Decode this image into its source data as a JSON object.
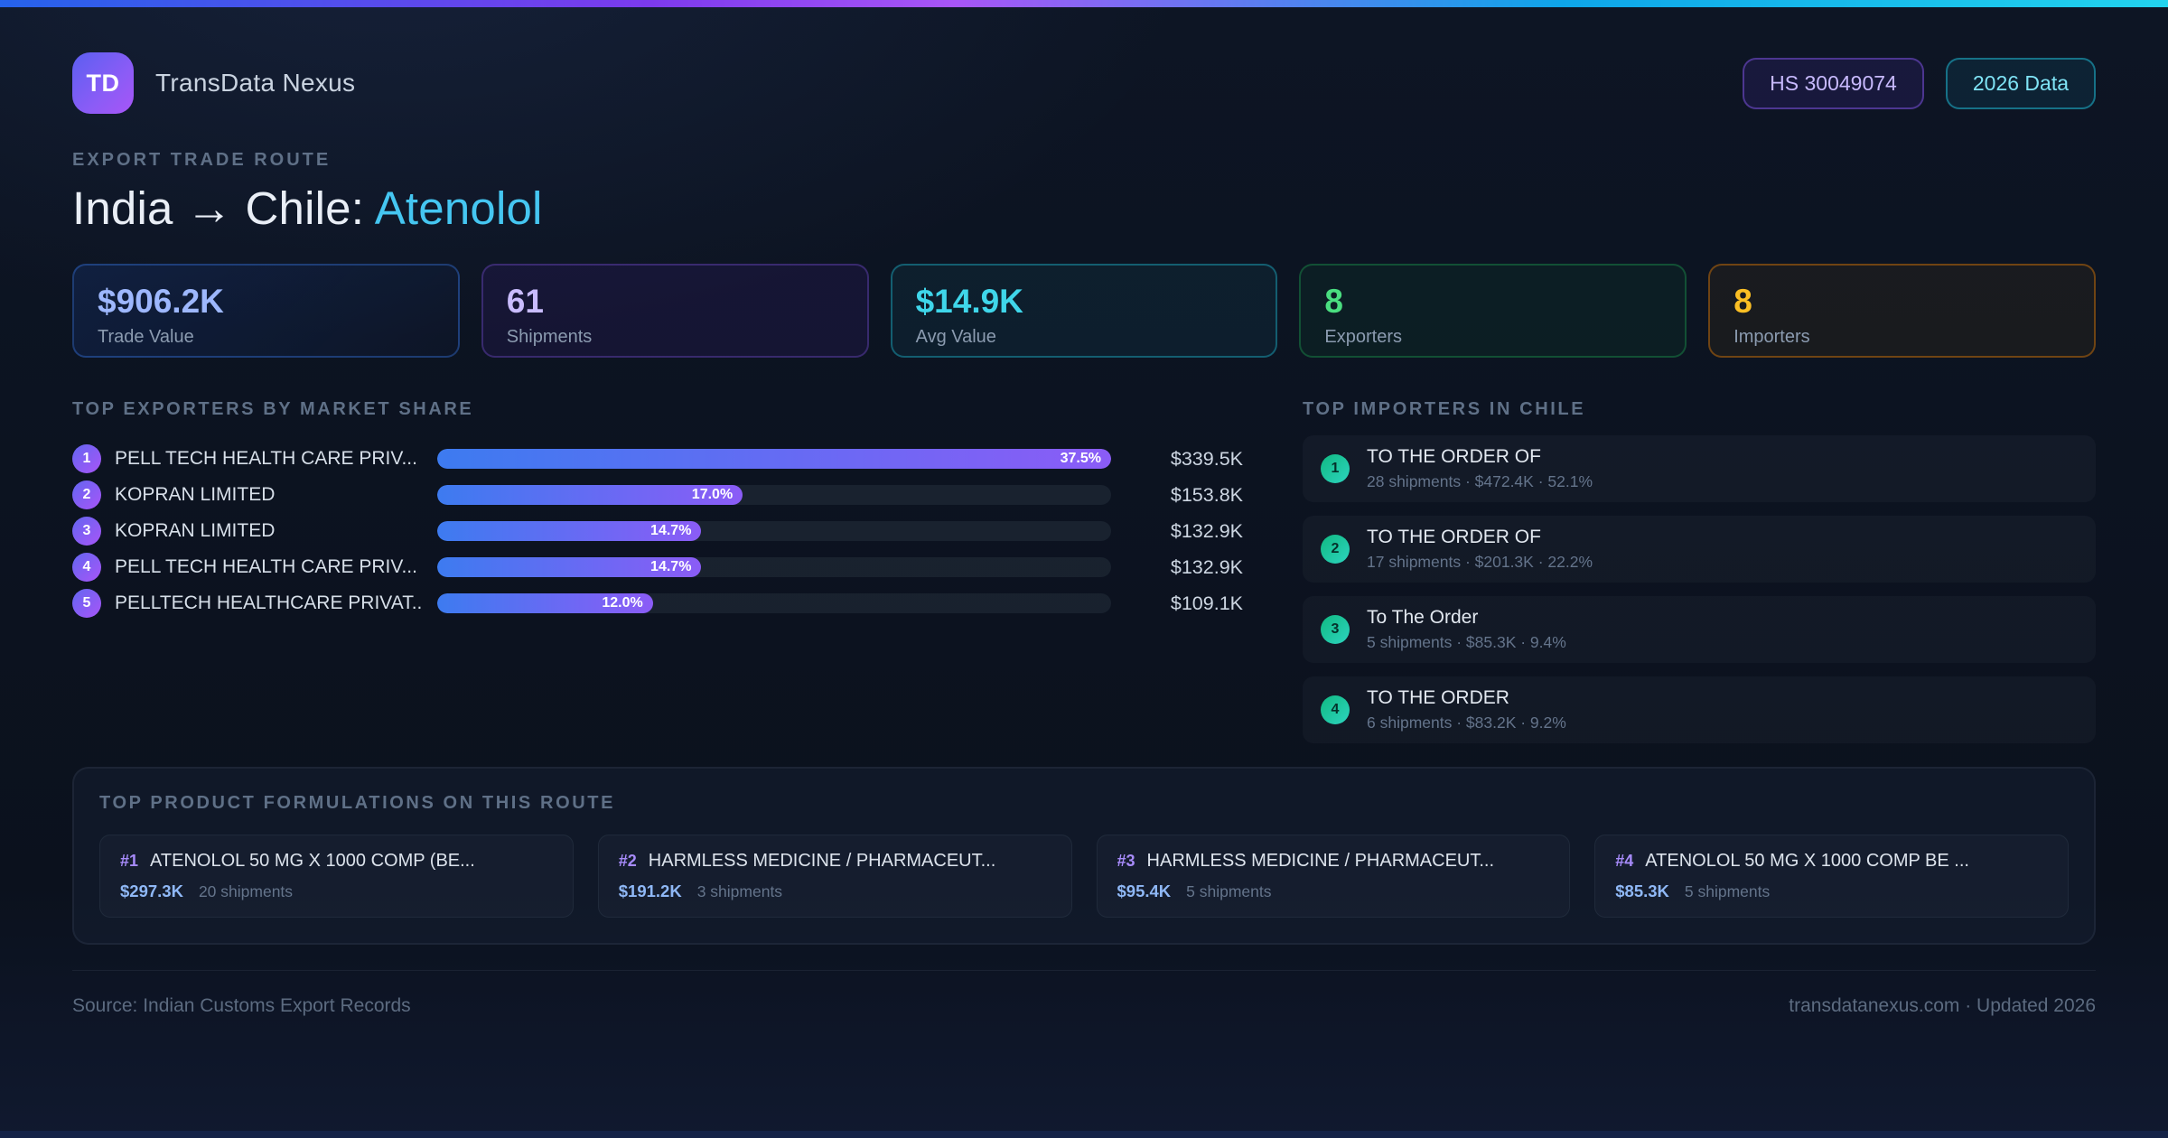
{
  "header": {
    "logo_text": "TD",
    "app_name": "TransData Nexus",
    "badges": {
      "hs_code": "HS 30049074",
      "year": "2026 Data"
    }
  },
  "hero": {
    "eyebrow": "EXPORT TRADE ROUTE",
    "route": "India → Chile: ",
    "product": "Atenolol"
  },
  "stats": [
    {
      "value": "$906.2K",
      "label": "Trade Value",
      "accent": "#9db7fd"
    },
    {
      "value": "61",
      "label": "Shipments",
      "accent": "#c9bcfd"
    },
    {
      "value": "$14.9K",
      "label": "Avg Value",
      "accent": "#3fd6ea"
    },
    {
      "value": "8",
      "label": "Exporters",
      "accent": "#4ade80"
    },
    {
      "value": "8",
      "label": "Importers",
      "accent": "#fbbf24"
    }
  ],
  "exporters": {
    "heading": "TOP EXPORTERS BY MARKET SHARE",
    "max_share_pct": 37.5,
    "bar_gradient": [
      "#3d7bf0",
      "#8b5cf6"
    ],
    "items": [
      {
        "rank": "1",
        "name": "PELL TECH HEALTH CARE PRIV...",
        "share_label": "37.5%",
        "share_pct": 37.5,
        "value": "$339.5K"
      },
      {
        "rank": "2",
        "name": "KOPRAN LIMITED",
        "share_label": "17.0%",
        "share_pct": 17.0,
        "value": "$153.8K"
      },
      {
        "rank": "3",
        "name": "KOPRAN LIMITED",
        "share_label": "14.7%",
        "share_pct": 14.7,
        "value": "$132.9K"
      },
      {
        "rank": "4",
        "name": "PELL TECH HEALTH CARE PRIV...",
        "share_label": "14.7%",
        "share_pct": 14.7,
        "value": "$132.9K"
      },
      {
        "rank": "5",
        "name": "PELLTECH HEALTHCARE PRIVAT...",
        "share_label": "12.0%",
        "share_pct": 12.0,
        "value": "$109.1K"
      }
    ]
  },
  "importers": {
    "heading": "TOP IMPORTERS IN CHILE",
    "items": [
      {
        "rank": "1",
        "name": "TO THE ORDER OF",
        "meta": "28 shipments · $472.4K · 52.1%"
      },
      {
        "rank": "2",
        "name": "TO THE ORDER OF",
        "meta": "17 shipments · $201.3K · 22.2%"
      },
      {
        "rank": "3",
        "name": "To The Order",
        "meta": "5 shipments · $85.3K · 9.4%"
      },
      {
        "rank": "4",
        "name": "TO THE ORDER",
        "meta": "6 shipments · $83.2K · 9.2%"
      }
    ]
  },
  "products": {
    "heading": "TOP PRODUCT FORMULATIONS ON THIS ROUTE",
    "items": [
      {
        "rank": "#1",
        "name": "ATENOLOL 50 MG X 1000 COMP (BE...",
        "value": "$297.3K",
        "shipments": "20 shipments"
      },
      {
        "rank": "#2",
        "name": "HARMLESS MEDICINE / PHARMACEUT...",
        "value": "$191.2K",
        "shipments": "3 shipments"
      },
      {
        "rank": "#3",
        "name": "HARMLESS MEDICINE / PHARMACEUT...",
        "value": "$95.4K",
        "shipments": "5 shipments"
      },
      {
        "rank": "#4",
        "name": "ATENOLOL 50 MG X 1000 COMP BE ...",
        "value": "$85.3K",
        "shipments": "5 shipments"
      }
    ]
  },
  "footer": {
    "source": "Source: Indian Customs Export Records",
    "site": "transdatanexus.com · Updated 2026"
  }
}
